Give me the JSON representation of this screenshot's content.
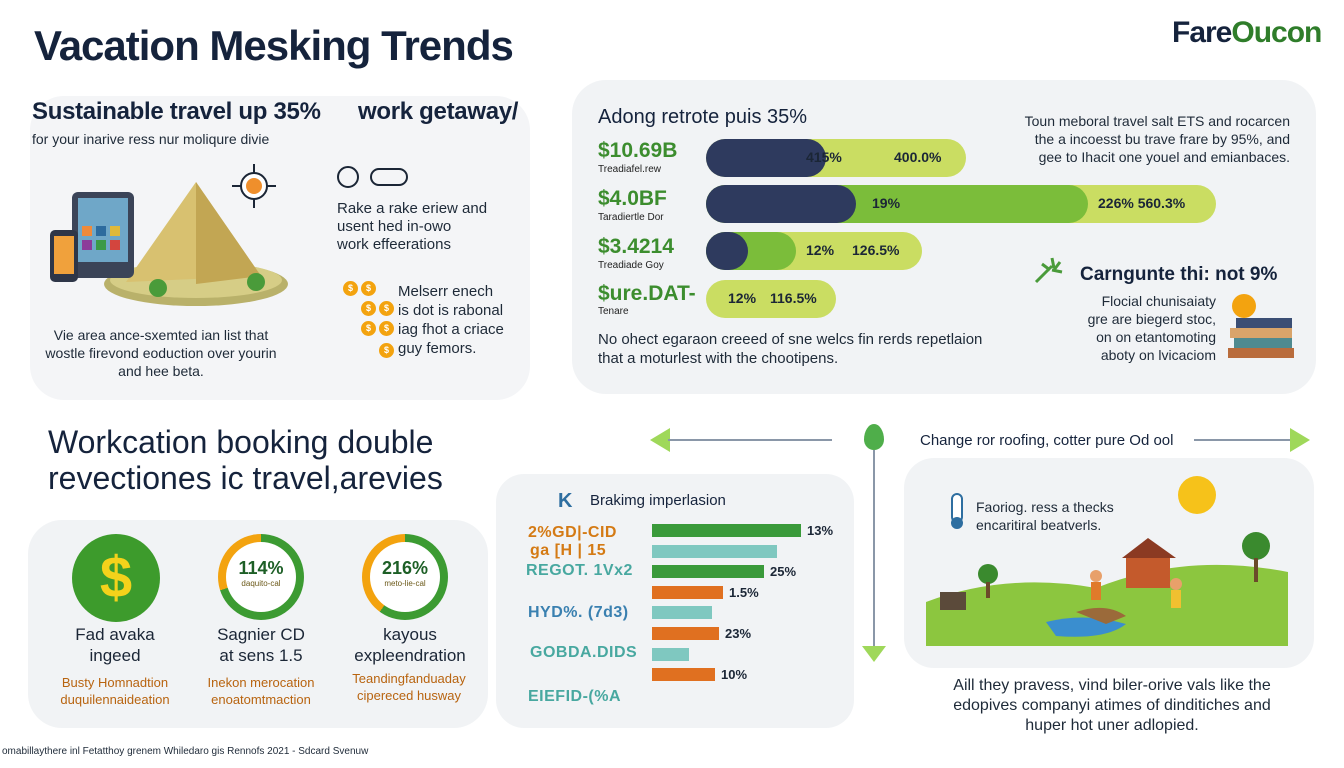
{
  "header": {
    "title": "Vacation Mesking Trends",
    "brand_part1": "Fare",
    "brand_part2": "Oucon"
  },
  "left_panel": {
    "headline": "Sustainable travel up 35%",
    "headline_right": "work getaway/",
    "subtitle": "for your inarive ress nur moliqure divie",
    "bottom_text": [
      "Vie area ance-sxemted ian list that",
      "wostle firevond eoduction over yourin",
      "and hee beta."
    ],
    "mid_text": [
      "Rake a rake eriew and",
      "usent hed in-owo",
      "work effeerations"
    ],
    "bullets": [
      "Melserr enech",
      "is dot is rabonal",
      "iag fhot a criace",
      "guy femors."
    ],
    "icons": [
      "pyramid-icon",
      "tablet-icon",
      "phone-icon",
      "target-icon"
    ]
  },
  "right_panel": {
    "heading": "Adong retrote puis 35%",
    "rows": [
      {
        "value": "$10.69B",
        "sub": "Treadiafel.rew",
        "left_label": "415%",
        "right_label": "400.0%"
      },
      {
        "value": "$4.0BF",
        "sub": "Taradiertle Dor",
        "left_label": "19%",
        "right_label": "226% 560.3%"
      },
      {
        "value": "$3.4214",
        "sub": "Treadiade Goy",
        "left_label": "12%",
        "right_label": "126.5%"
      },
      {
        "value": "$ure.DAT-",
        "sub": "Tenare",
        "left_label": "12%",
        "right_label": "116.5%"
      }
    ],
    "note": [
      "No ohect egaraon creeed of sne welcs fin rerds repetlaion",
      "that a moturlest with the chootipens."
    ],
    "side_text": [
      "Toun meboral travel salt ETS and rocarcen",
      "the a incoesst bu trave frare by 95%, and",
      "gee to Ihacit one youel and emianbaces."
    ],
    "side_heading": "Carngunte thi: not 9%",
    "side_body": [
      "Flocial chunisaiaty",
      "gre are biegerd stoc,",
      "on on etantomoting",
      "aboty on lvicaciom"
    ]
  },
  "workcation": {
    "heading_line1": "Workcation booking double",
    "heading_line2": "revectiones ic travel,arevies",
    "stats": [
      {
        "title_line1": "Fad avaka",
        "title_line2": "ingeed",
        "note_line1": "Busty Homnadtion",
        "note_line2": "duquilennaideation"
      },
      {
        "pct": "114%",
        "cap": "daquito-cal",
        "title_line1": "Sagnier CD",
        "title_line2": "at sens 1.5",
        "note_line1": "Inekon merocation",
        "note_line2": "enoatomtmaction"
      },
      {
        "pct": "216%",
        "cap": "meto-lie-cal",
        "title_line1": "kayous",
        "title_line2": "expleendration",
        "note_line1": "Teandingfanduaday",
        "note_line2": "cipereced husway"
      }
    ]
  },
  "breaking": {
    "heading": "Brakimg imperlasion",
    "labels": [
      "2%GD|-CID",
      "ga [H | 15",
      "REGOT. 1Vx2",
      "HYD%. (7d3)",
      "GOBDA.DIDS",
      "EIEFID-(%A"
    ],
    "values": [
      {
        "label": "13%",
        "fraction": 0.8,
        "color": "#3a9a3a"
      },
      {
        "label": "",
        "fraction": 0.67,
        "color": "#7fc8c0"
      },
      {
        "label": "25%",
        "fraction": 0.6,
        "color": "#3a9a3a"
      },
      {
        "label": "1.5%",
        "fraction": 0.38,
        "color": "#e07020"
      },
      {
        "label": "",
        "fraction": 0.32,
        "color": "#7fc8c0"
      },
      {
        "label": "23%",
        "fraction": 0.36,
        "color": "#e07020"
      },
      {
        "label": "",
        "fraction": 0.2,
        "color": "#7fc8c0"
      },
      {
        "label": "10%",
        "fraction": 0.34,
        "color": "#e07020"
      }
    ]
  },
  "change": {
    "heading": "Change ror roofing, cotter pure Od ool",
    "card_text_line1": "Faoriog. ress a thecks",
    "card_text_line2": "encaritiral beatverls.",
    "bottom_lines": [
      "Aill they pravess, vind biler-orive vals like the",
      "edopives companyi atimes of dinditiches and",
      "huper hot uner adlopied."
    ]
  },
  "footer": {
    "source": "omabillaythere inl Fetatthoy grenem Whiledaro gis Rennofs 2021 - Sdcard Svenuw"
  },
  "colors": {
    "navy": "#15233c",
    "green": "#3c8d2e",
    "lime": "#cadd62",
    "orange": "#f3a30f",
    "teal": "#7fc8c0"
  }
}
